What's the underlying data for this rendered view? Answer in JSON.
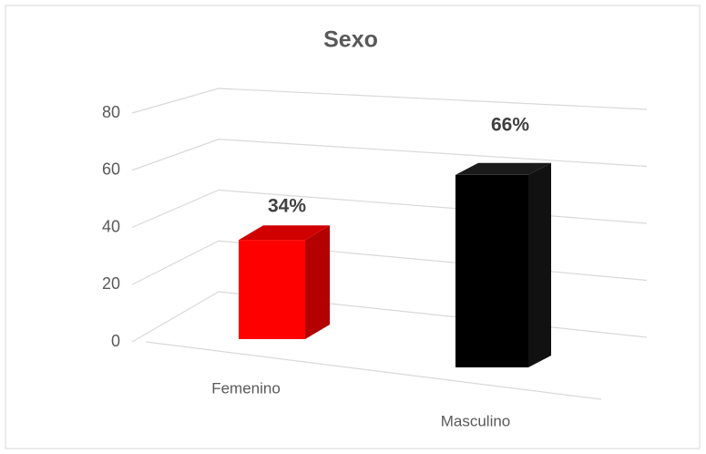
{
  "chart_data": {
    "type": "bar3d",
    "title": "Sexo",
    "categories": [
      "Femenino",
      "Masculino"
    ],
    "values": [
      34,
      66
    ],
    "value_labels": [
      "34%",
      "66%"
    ],
    "colors": [
      "#ff0000",
      "#000000"
    ],
    "ylim": [
      0,
      80
    ],
    "yticks": [
      0,
      20,
      40,
      60,
      80
    ],
    "grid": true
  }
}
